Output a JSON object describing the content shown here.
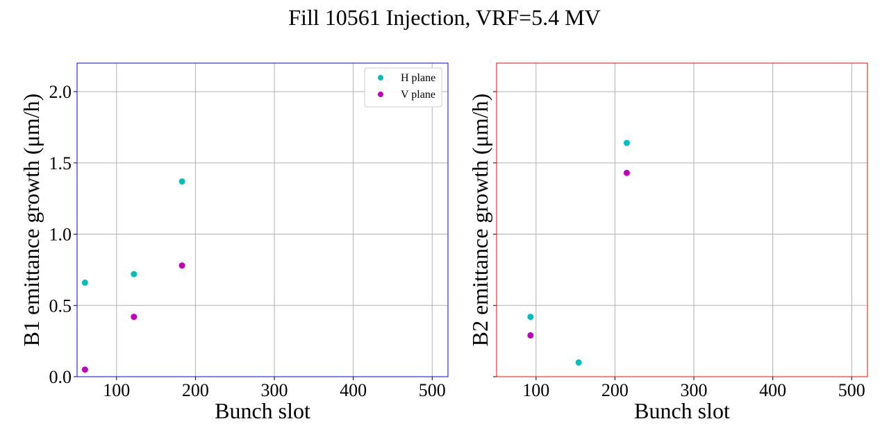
{
  "figure": {
    "title": "Fill 10561 Injection, VRF=5.4 MV"
  },
  "chart_data": [
    {
      "type": "scatter",
      "xlabel": "Bunch slot",
      "ylabel": "B1 emittance growth (μm/h)",
      "xlim": [
        50,
        520
      ],
      "ylim": [
        0,
        2.2
      ],
      "xticks": [
        100,
        200,
        300,
        400,
        500
      ],
      "yticks": [
        0.0,
        0.5,
        1.0,
        1.5,
        2.0
      ],
      "ytick_labels": [
        "0.0",
        "0.5",
        "1.0",
        "1.5",
        "2.0"
      ],
      "show_ytick_labels": true,
      "grid": true,
      "frame_color": "#0000ff",
      "legend": "top-right",
      "series": [
        {
          "name": "H plane",
          "color": "#00bfbf",
          "x": [
            60,
            122,
            183
          ],
          "y": [
            0.66,
            0.72,
            1.37
          ]
        },
        {
          "name": "V plane",
          "color": "#bf00bf",
          "x": [
            60,
            122,
            183
          ],
          "y": [
            0.05,
            0.42,
            0.78
          ]
        }
      ]
    },
    {
      "type": "scatter",
      "xlabel": "Bunch slot",
      "ylabel": "B2 emittance growth (μm/h)",
      "xlim": [
        50,
        520
      ],
      "ylim": [
        0,
        2.2
      ],
      "xticks": [
        100,
        200,
        300,
        400,
        500
      ],
      "yticks": [
        0.0,
        0.5,
        1.0,
        1.5,
        2.0
      ],
      "ytick_labels": [
        "0.0",
        "0.5",
        "1.0",
        "1.5",
        "2.0"
      ],
      "show_ytick_labels": false,
      "grid": true,
      "frame_color": "#ff0000",
      "legend": "none",
      "series": [
        {
          "name": "H plane",
          "color": "#00bfbf",
          "x": [
            93,
            154,
            215
          ],
          "y": [
            0.42,
            0.1,
            1.64
          ]
        },
        {
          "name": "V plane",
          "color": "#bf00bf",
          "x": [
            93,
            215
          ],
          "y": [
            0.29,
            1.43
          ]
        }
      ]
    }
  ]
}
